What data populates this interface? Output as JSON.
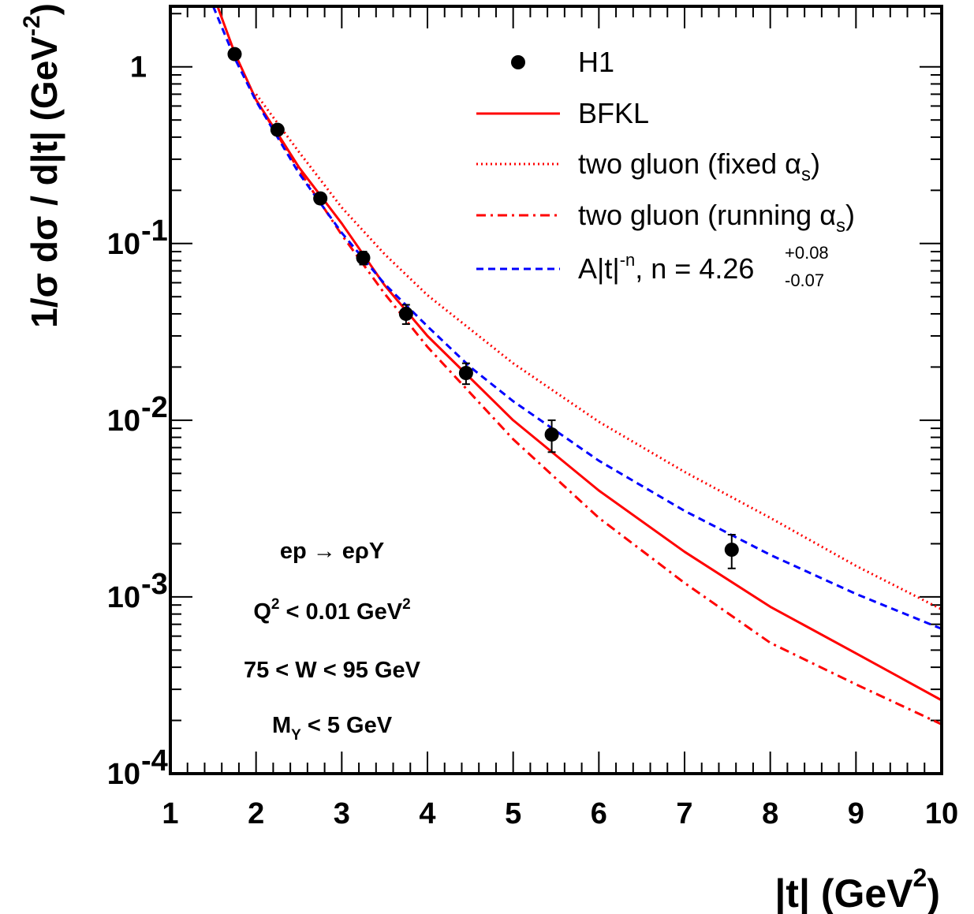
{
  "chart_data": {
    "type": "line",
    "xlabel": "|t| (GeV",
    "xlabel_sup": "2",
    "xlabel_end": ")",
    "ylabel": "1/σ dσ / d|t| (GeV",
    "ylabel_sup": "-2",
    "ylabel_end": ")",
    "xlim": [
      1,
      10
    ],
    "ylim": [
      0.0001,
      2.2
    ],
    "yscale": "log",
    "x_ticks": [
      "1",
      "2",
      "3",
      "4",
      "5",
      "6",
      "7",
      "8",
      "9",
      "10"
    ],
    "y_ticks": [
      {
        "value": 1,
        "base": "1",
        "exp": ""
      },
      {
        "value": 0.1,
        "base": "10",
        "exp": "-1"
      },
      {
        "value": 0.01,
        "base": "10",
        "exp": "-2"
      },
      {
        "value": 0.001,
        "base": "10",
        "exp": "-3"
      },
      {
        "value": 0.0001,
        "base": "10",
        "exp": "-4"
      }
    ],
    "legend_position": "top-right",
    "legend": [
      {
        "key": "h1",
        "style": "marker",
        "label": "H1"
      },
      {
        "key": "bfkl",
        "style": "solid",
        "label": "BFKL"
      },
      {
        "key": "fixed",
        "style": "dotted",
        "label": "two gluon (fixed α",
        "sub": "s",
        "tail": ")"
      },
      {
        "key": "running",
        "style": "dashdot",
        "label": "two gluon (running α",
        "sub": "s",
        "tail": ")"
      },
      {
        "key": "fit",
        "style": "dashed",
        "label": "A|t|",
        "sup": "-n",
        "tail": ", n = 4.26",
        "err_up": "+0.08",
        "err_down": "-0.07"
      }
    ],
    "annotations": [
      {
        "text": "ep → eρY"
      },
      {
        "text": "Q",
        "sup": "2",
        "tail": " < 0.01 GeV",
        "sup2": "2"
      },
      {
        "text": "75 < W < 95 GeV"
      },
      {
        "text": "M",
        "sub": "Y",
        "tail": " < 5 GeV"
      }
    ],
    "data_points": {
      "name": "H1",
      "color": "#000000",
      "x": [
        1.75,
        2.25,
        2.75,
        3.25,
        3.75,
        4.45,
        5.45,
        7.55
      ],
      "y": [
        1.18,
        0.44,
        0.18,
        0.083,
        0.04,
        0.0185,
        0.0083,
        0.00185
      ],
      "err_low": [
        0.06,
        0.025,
        0.012,
        0.007,
        0.005,
        0.0025,
        0.0017,
        0.0004
      ],
      "err_high": [
        0.06,
        0.025,
        0.012,
        0.007,
        0.005,
        0.0025,
        0.0017,
        0.0004
      ]
    },
    "series": [
      {
        "name": "BFKL",
        "color": "#ff0000",
        "style": "solid",
        "x": [
          1.55,
          1.75,
          2.0,
          2.25,
          2.5,
          3.0,
          3.5,
          4.0,
          5.0,
          6.0,
          7.0,
          8.0,
          9.0,
          10.0
        ],
        "y": [
          2.2,
          1.2,
          0.65,
          0.42,
          0.27,
          0.13,
          0.058,
          0.03,
          0.01,
          0.004,
          0.0018,
          0.00088,
          0.00048,
          0.00026
        ]
      },
      {
        "name": "two gluon (fixed αs)",
        "color": "#ff0000",
        "style": "dotted",
        "x": [
          2.0,
          2.5,
          3.0,
          3.5,
          4.0,
          5.0,
          6.0,
          7.0,
          8.0,
          9.0,
          10.0
        ],
        "y": [
          0.7,
          0.33,
          0.16,
          0.087,
          0.051,
          0.021,
          0.0098,
          0.0051,
          0.0028,
          0.0015,
          0.00085
        ]
      },
      {
        "name": "two gluon (running αs)",
        "color": "#ff0000",
        "style": "dashdot",
        "x": [
          2.0,
          2.5,
          3.0,
          3.5,
          4.0,
          5.0,
          6.0,
          7.0,
          8.0,
          9.0,
          10.0
        ],
        "y": [
          0.65,
          0.26,
          0.112,
          0.052,
          0.026,
          0.0078,
          0.0028,
          0.0012,
          0.00055,
          0.00032,
          0.00019
        ]
      },
      {
        "name": "A|t|^-n, n = 4.26",
        "color": "#0000ff",
        "style": "dashed",
        "x": [
          1.5,
          1.75,
          2.0,
          2.5,
          3.0,
          3.5,
          4.0,
          4.5,
          5.0,
          6.0,
          7.0,
          8.0,
          9.0,
          10.0
        ],
        "y": [
          2.2,
          1.12,
          0.64,
          0.25,
          0.115,
          0.059,
          0.034,
          0.02,
          0.0128,
          0.0059,
          0.00307,
          0.00173,
          0.00104,
          0.00066
        ]
      }
    ]
  }
}
